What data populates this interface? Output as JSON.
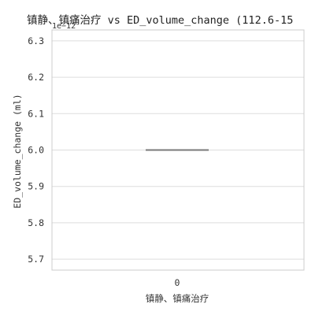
{
  "chart_data": {
    "type": "box",
    "title": "镇静、镇痛治疗 vs ED_volume_change (112.6-15",
    "offset_text": "1e−12",
    "xlabel": "镇静、镇痛治疗",
    "ylabel": "ED_volume_change (ml)",
    "categories": [
      "0"
    ],
    "values": [
      6.0
    ],
    "ylim": [
      5.67,
      6.33
    ],
    "yticks": [
      5.7,
      5.8,
      5.9,
      6.0,
      6.1,
      6.2,
      6.3
    ],
    "ytick_labels": [
      "5.7",
      "5.8",
      "5.9",
      "6.0",
      "6.1",
      "6.2",
      "6.3"
    ],
    "grid": true,
    "colors": {
      "grid": "#dddddd",
      "median": "#7a7a7a",
      "spine": "#cccccc"
    }
  }
}
